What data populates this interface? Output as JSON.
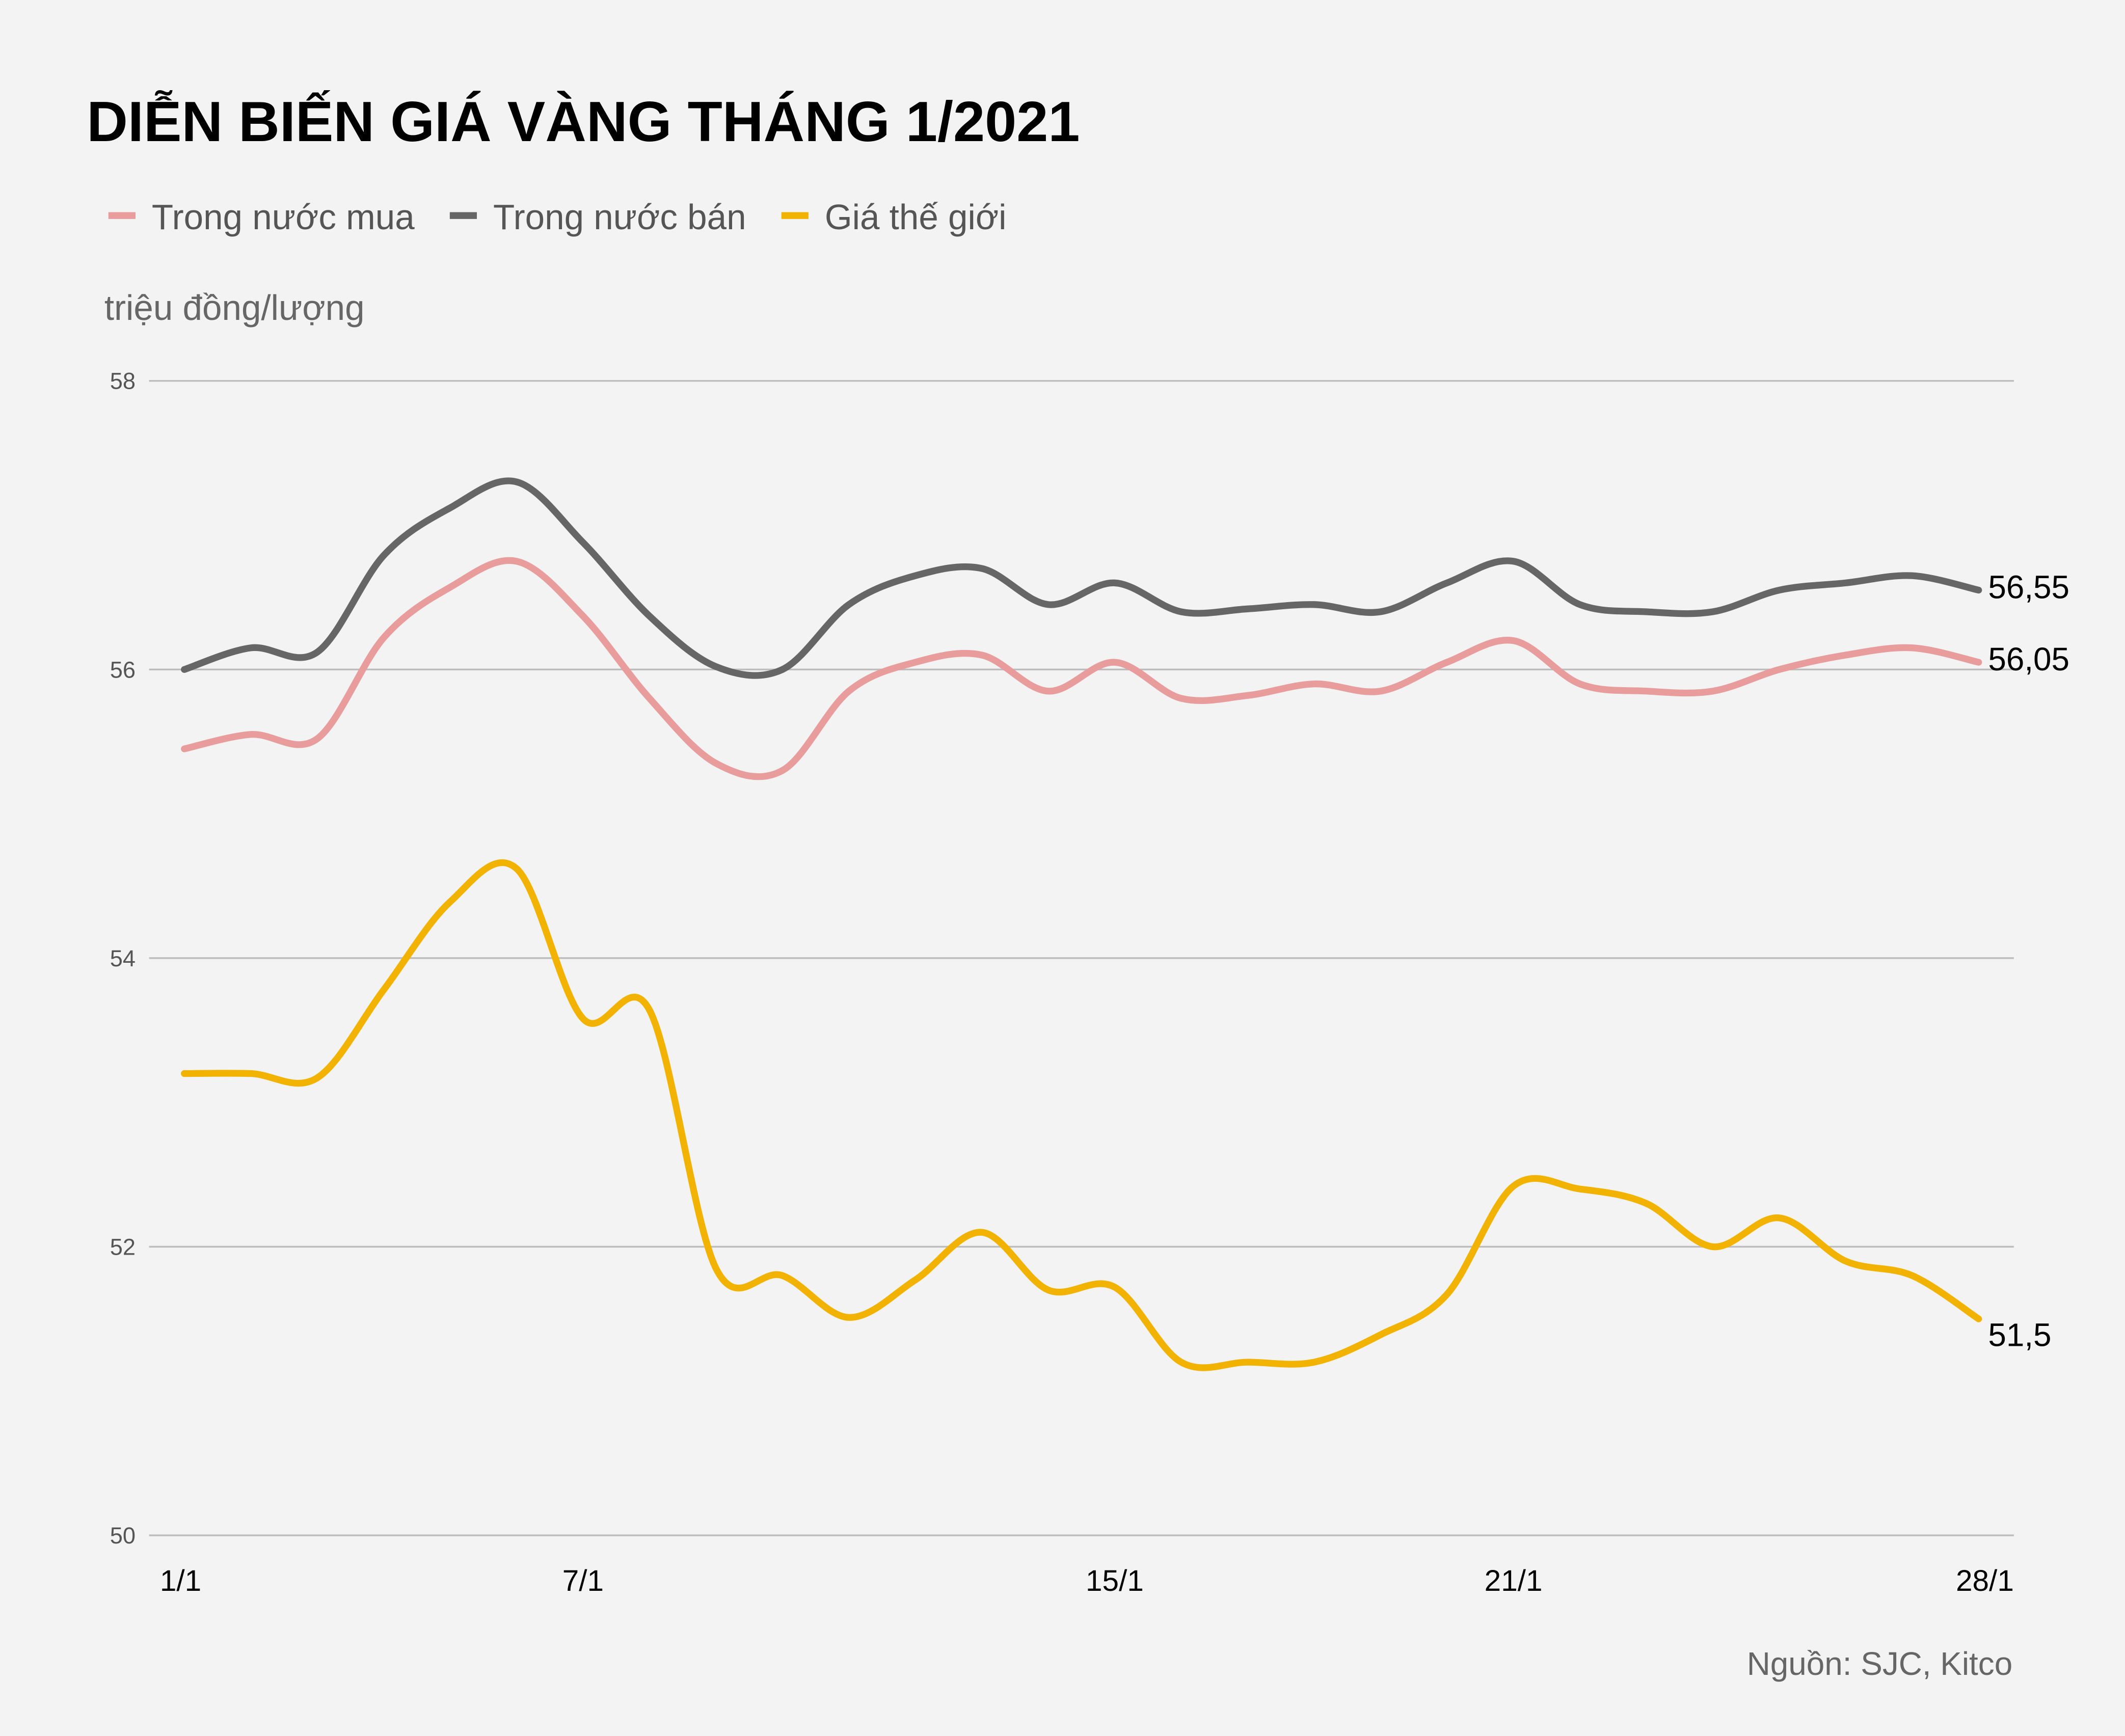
{
  "chart_data": {
    "type": "line",
    "title": "DIỄN BIẾN GIÁ VÀNG THÁNG 1/2021",
    "ylabel": "triệu đồng/lượng",
    "source": "Nguồn: SJC, Kitco",
    "ylim": [
      50,
      58
    ],
    "yticks": [
      50,
      52,
      54,
      56,
      58
    ],
    "x": [
      "1/1",
      "2/1",
      "3/1",
      "4/1",
      "5/1",
      "6/1",
      "7/1",
      "8/1",
      "9/1",
      "10/1",
      "11/1",
      "12/1",
      "13/1",
      "14/1",
      "15/1",
      "16/1",
      "17/1",
      "18/1",
      "19/1",
      "20/1",
      "21/1",
      "22/1",
      "23/1",
      "24/1",
      "25/1",
      "26/1",
      "27/1",
      "28/1"
    ],
    "xtick_labels": [
      "1/1",
      "7/1",
      "15/1",
      "21/1",
      "28/1"
    ],
    "grid": true,
    "legend_position": "top-left",
    "series": [
      {
        "name": "Trong nước mua",
        "color": "#e89c9c",
        "end_label": "56,05",
        "values": [
          55.45,
          55.55,
          55.52,
          56.22,
          56.57,
          56.75,
          56.37,
          55.8,
          55.35,
          55.3,
          55.85,
          56.05,
          56.1,
          55.85,
          56.05,
          55.8,
          55.82,
          55.9,
          55.85,
          56.05,
          56.2,
          55.9,
          55.85,
          55.85,
          56.0,
          56.1,
          56.15,
          56.05
        ]
      },
      {
        "name": "Trong nước bán",
        "color": "#666666",
        "end_label": "56,55",
        "values": [
          56.0,
          56.15,
          56.12,
          56.79,
          57.12,
          57.3,
          56.88,
          56.37,
          56.02,
          56.0,
          56.45,
          56.65,
          56.7,
          56.45,
          56.6,
          56.4,
          56.42,
          56.45,
          56.4,
          56.6,
          56.75,
          56.45,
          56.4,
          56.4,
          56.55,
          56.6,
          56.65,
          56.55
        ]
      },
      {
        "name": "Giá thế giới",
        "color": "#f2b300",
        "end_label": "51,5",
        "values": [
          53.2,
          53.2,
          53.17,
          53.78,
          54.39,
          54.62,
          53.58,
          53.64,
          51.85,
          51.8,
          51.51,
          51.77,
          52.1,
          51.7,
          51.72,
          51.2,
          51.2,
          51.2,
          51.39,
          51.67,
          52.42,
          52.4,
          52.3,
          52.0,
          52.2,
          51.9,
          51.8,
          51.5
        ]
      }
    ]
  }
}
